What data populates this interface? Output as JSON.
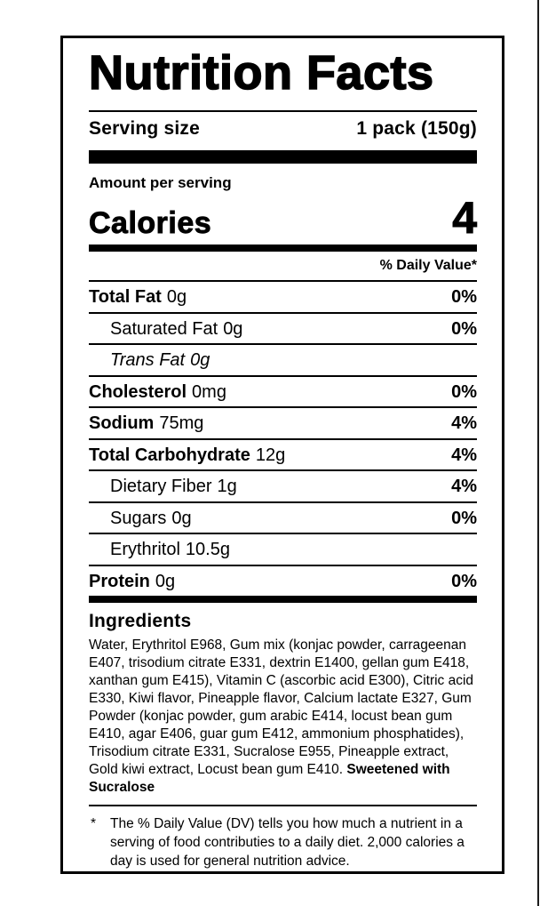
{
  "label": {
    "title": "Nutrition Facts",
    "serving": {
      "label": "Serving size",
      "value": "1 pack (150g)"
    },
    "amount_per_serving": "Amount per serving",
    "calories": {
      "label": "Calories",
      "value": "4"
    },
    "daily_value_header": "% Daily Value*",
    "rows": [
      {
        "name": "Total Fat",
        "amount": "0g",
        "dv": "0%"
      },
      {
        "name": "Saturated Fat",
        "amount": "0g",
        "dv": "0%"
      },
      {
        "name": "Trans Fat",
        "amount": "0g",
        "dv": ""
      },
      {
        "name": "Cholesterol",
        "amount": "0mg",
        "dv": "0%"
      },
      {
        "name": "Sodium",
        "amount": "75mg",
        "dv": "4%"
      },
      {
        "name": "Total Carbohydrate",
        "amount": "12g",
        "dv": "4%"
      },
      {
        "name": "Dietary Fiber",
        "amount": "1g",
        "dv": "4%"
      },
      {
        "name": "Sugars",
        "amount": "0g",
        "dv": "0%"
      },
      {
        "name": "Erythritol",
        "amount": "10.5g",
        "dv": ""
      },
      {
        "name": "Protein",
        "amount": "0g",
        "dv": "0%"
      }
    ],
    "ingredients": {
      "heading": "Ingredients",
      "text": "Water, Erythritol E968, Gum mix (konjac powder, carrageenan E407, trisodium citrate E331, dextrin E1400, gellan gum E418, xanthan gum E415), Vitamin C (ascorbic acid E300), Citric acid E330, Kiwi flavor, Pineapple flavor, Calcium lactate E327, Gum Powder (konjac powder, gum arabic E414, locust bean gum E410, agar E406, guar gum E412, ammonium phosphatides), Trisodium citrate E331, Sucralose E955, Pineapple extract, Gold kiwi extract, Locust bean gum E410. ",
      "text_bold_suffix": "Sweetened with Sucralose"
    },
    "footnote": {
      "marker": "*",
      "text": "The % Daily Value (DV) tells you how much a nutrient in a serving of food contributies to a daily diet. 2,000 calories a day is used for general nutrition advice."
    },
    "colors": {
      "ink": "#000000",
      "background": "#ffffff"
    }
  }
}
